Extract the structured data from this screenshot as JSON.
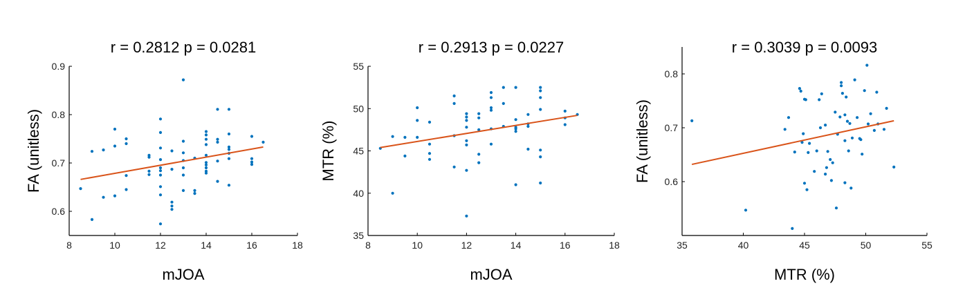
{
  "chart_data": [
    {
      "type": "scatter",
      "title": "r = 0.2812  p = 0.0281",
      "xlabel": "mJOA",
      "ylabel": "FA (unitless)",
      "xlim": [
        8,
        18
      ],
      "ylim": [
        0.55,
        0.9
      ],
      "xticks": [
        "8",
        "10",
        "12",
        "14",
        "16",
        "18"
      ],
      "yticks": [
        "0.6",
        "0.7",
        "0.8",
        "0.9"
      ],
      "point_color": "#0072BD",
      "fit_color": "#D95319",
      "fit_line": {
        "x": [
          8.5,
          16.5
        ],
        "y": [
          0.666,
          0.733
        ]
      },
      "points": [
        [
          8.5,
          0.647
        ],
        [
          9.0,
          0.724
        ],
        [
          9.0,
          0.583
        ],
        [
          9.5,
          0.727
        ],
        [
          9.5,
          0.629
        ],
        [
          10.0,
          0.77
        ],
        [
          10.0,
          0.735
        ],
        [
          10.0,
          0.632
        ],
        [
          10.5,
          0.75
        ],
        [
          10.5,
          0.74
        ],
        [
          10.5,
          0.674
        ],
        [
          10.5,
          0.645
        ],
        [
          11.5,
          0.716
        ],
        [
          11.5,
          0.712
        ],
        [
          11.5,
          0.683
        ],
        [
          11.5,
          0.676
        ],
        [
          12.0,
          0.791
        ],
        [
          12.0,
          0.763
        ],
        [
          12.0,
          0.731
        ],
        [
          12.0,
          0.707
        ],
        [
          12.0,
          0.69
        ],
        [
          12.0,
          0.684
        ],
        [
          12.0,
          0.675
        ],
        [
          12.0,
          0.651
        ],
        [
          12.0,
          0.634
        ],
        [
          12.0,
          0.574
        ],
        [
          12.5,
          0.725
        ],
        [
          12.5,
          0.687
        ],
        [
          12.5,
          0.619
        ],
        [
          12.5,
          0.611
        ],
        [
          12.5,
          0.604
        ],
        [
          13.0,
          0.872
        ],
        [
          13.0,
          0.745
        ],
        [
          13.0,
          0.721
        ],
        [
          13.0,
          0.705
        ],
        [
          13.0,
          0.69
        ],
        [
          13.0,
          0.675
        ],
        [
          13.0,
          0.643
        ],
        [
          13.5,
          0.71
        ],
        [
          13.5,
          0.643
        ],
        [
          13.5,
          0.637
        ],
        [
          14.0,
          0.765
        ],
        [
          14.0,
          0.758
        ],
        [
          14.0,
          0.749
        ],
        [
          14.0,
          0.738
        ],
        [
          14.0,
          0.716
        ],
        [
          14.0,
          0.701
        ],
        [
          14.0,
          0.696
        ],
        [
          14.0,
          0.69
        ],
        [
          14.0,
          0.683
        ],
        [
          14.0,
          0.679
        ],
        [
          14.5,
          0.811
        ],
        [
          14.5,
          0.749
        ],
        [
          14.5,
          0.743
        ],
        [
          14.5,
          0.704
        ],
        [
          14.5,
          0.662
        ],
        [
          15.0,
          0.811
        ],
        [
          15.0,
          0.76
        ],
        [
          15.0,
          0.733
        ],
        [
          15.0,
          0.728
        ],
        [
          15.0,
          0.72
        ],
        [
          15.0,
          0.709
        ],
        [
          15.0,
          0.654
        ],
        [
          16.0,
          0.755
        ],
        [
          16.0,
          0.709
        ],
        [
          16.0,
          0.702
        ],
        [
          16.0,
          0.697
        ],
        [
          16.5,
          0.743
        ]
      ]
    },
    {
      "type": "scatter",
      "title": "r = 0.2913  p = 0.0227",
      "xlabel": "mJOA",
      "ylabel": "MTR (%)",
      "xlim": [
        8,
        18
      ],
      "ylim": [
        35,
        55
      ],
      "xticks": [
        "8",
        "10",
        "12",
        "14",
        "16",
        "18"
      ],
      "yticks": [
        "35",
        "40",
        "45",
        "50",
        "55"
      ],
      "point_color": "#0072BD",
      "fit_color": "#D95319",
      "fit_line": {
        "x": [
          8.5,
          16.5
        ],
        "y": [
          45.4,
          49.2
        ]
      },
      "points": [
        [
          8.5,
          45.3
        ],
        [
          9.0,
          46.7
        ],
        [
          9.0,
          40.0
        ],
        [
          9.5,
          46.6
        ],
        [
          9.5,
          44.4
        ],
        [
          10.0,
          50.1
        ],
        [
          10.0,
          48.6
        ],
        [
          10.0,
          46.6
        ],
        [
          10.5,
          48.4
        ],
        [
          10.5,
          45.8
        ],
        [
          10.5,
          44.7
        ],
        [
          10.5,
          44.0
        ],
        [
          11.5,
          51.5
        ],
        [
          11.5,
          50.6
        ],
        [
          11.5,
          46.8
        ],
        [
          11.5,
          43.1
        ],
        [
          12.0,
          49.4
        ],
        [
          12.0,
          49.0
        ],
        [
          12.0,
          48.6
        ],
        [
          12.0,
          47.8
        ],
        [
          12.0,
          46.2
        ],
        [
          12.0,
          45.7
        ],
        [
          12.0,
          42.7
        ],
        [
          12.0,
          37.3
        ],
        [
          12.5,
          49.4
        ],
        [
          12.5,
          48.9
        ],
        [
          12.5,
          47.5
        ],
        [
          12.5,
          44.6
        ],
        [
          12.5,
          43.6
        ],
        [
          13.0,
          51.9
        ],
        [
          13.0,
          51.3
        ],
        [
          13.0,
          50.1
        ],
        [
          13.0,
          49.8
        ],
        [
          13.0,
          47.6
        ],
        [
          13.0,
          45.8
        ],
        [
          13.5,
          52.5
        ],
        [
          13.5,
          50.6
        ],
        [
          13.5,
          47.9
        ],
        [
          14.0,
          52.5
        ],
        [
          14.0,
          48.7
        ],
        [
          14.0,
          47.8
        ],
        [
          14.0,
          47.6
        ],
        [
          14.0,
          47.3
        ],
        [
          14.0,
          41.0
        ],
        [
          14.5,
          49.3
        ],
        [
          14.5,
          48.2
        ],
        [
          14.5,
          47.9
        ],
        [
          14.5,
          45.2
        ],
        [
          15.0,
          52.5
        ],
        [
          15.0,
          52.1
        ],
        [
          15.0,
          51.3
        ],
        [
          15.0,
          49.9
        ],
        [
          15.0,
          45.1
        ],
        [
          15.0,
          44.3
        ],
        [
          15.0,
          41.2
        ],
        [
          16.0,
          49.7
        ],
        [
          16.0,
          48.9
        ],
        [
          16.0,
          48.1
        ],
        [
          16.5,
          49.3
        ]
      ]
    },
    {
      "type": "scatter",
      "title": "r = 0.3039  p = 0.0093",
      "xlabel": "MTR (%)",
      "ylabel": "FA (unitless)",
      "xlim": [
        35,
        55
      ],
      "ylim": [
        0.5,
        0.85
      ],
      "xticks": [
        "35",
        "40",
        "45",
        "50",
        "55"
      ],
      "yticks": [
        "0.6",
        "0.7",
        "0.8"
      ],
      "point_color": "#0072BD",
      "fit_color": "#D95319",
      "fit_line": {
        "x": [
          35.8,
          52.3
        ],
        "y": [
          0.632,
          0.713
        ]
      },
      "points": [
        [
          35.8,
          0.713
        ],
        [
          40.2,
          0.547
        ],
        [
          43.4,
          0.697
        ],
        [
          43.7,
          0.719
        ],
        [
          44.0,
          0.513
        ],
        [
          44.2,
          0.655
        ],
        [
          44.6,
          0.773
        ],
        [
          44.7,
          0.768
        ],
        [
          44.8,
          0.673
        ],
        [
          44.9,
          0.689
        ],
        [
          45.0,
          0.753
        ],
        [
          45.1,
          0.752
        ],
        [
          45.0,
          0.597
        ],
        [
          45.2,
          0.585
        ],
        [
          45.3,
          0.654
        ],
        [
          45.4,
          0.671
        ],
        [
          45.8,
          0.619
        ],
        [
          46.0,
          0.657
        ],
        [
          46.2,
          0.752
        ],
        [
          46.3,
          0.7
        ],
        [
          46.4,
          0.763
        ],
        [
          46.7,
          0.705
        ],
        [
          46.7,
          0.614
        ],
        [
          46.8,
          0.626
        ],
        [
          46.9,
          0.656
        ],
        [
          47.1,
          0.641
        ],
        [
          47.2,
          0.602
        ],
        [
          47.3,
          0.635
        ],
        [
          47.5,
          0.729
        ],
        [
          47.6,
          0.551
        ],
        [
          47.7,
          0.688
        ],
        [
          47.9,
          0.72
        ],
        [
          48.0,
          0.784
        ],
        [
          48.0,
          0.778
        ],
        [
          48.1,
          0.764
        ],
        [
          48.3,
          0.724
        ],
        [
          48.3,
          0.598
        ],
        [
          48.3,
          0.676
        ],
        [
          48.4,
          0.757
        ],
        [
          48.5,
          0.712
        ],
        [
          48.6,
          0.657
        ],
        [
          48.7,
          0.708
        ],
        [
          48.8,
          0.588
        ],
        [
          48.9,
          0.681
        ],
        [
          49.1,
          0.789
        ],
        [
          49.3,
          0.719
        ],
        [
          49.5,
          0.68
        ],
        [
          49.6,
          0.678
        ],
        [
          49.7,
          0.651
        ],
        [
          49.9,
          0.769
        ],
        [
          50.1,
          0.816
        ],
        [
          50.2,
          0.707
        ],
        [
          50.4,
          0.726
        ],
        [
          50.7,
          0.695
        ],
        [
          50.9,
          0.766
        ],
        [
          51.0,
          0.707
        ],
        [
          51.5,
          0.697
        ],
        [
          51.7,
          0.736
        ],
        [
          52.3,
          0.627
        ]
      ]
    }
  ]
}
